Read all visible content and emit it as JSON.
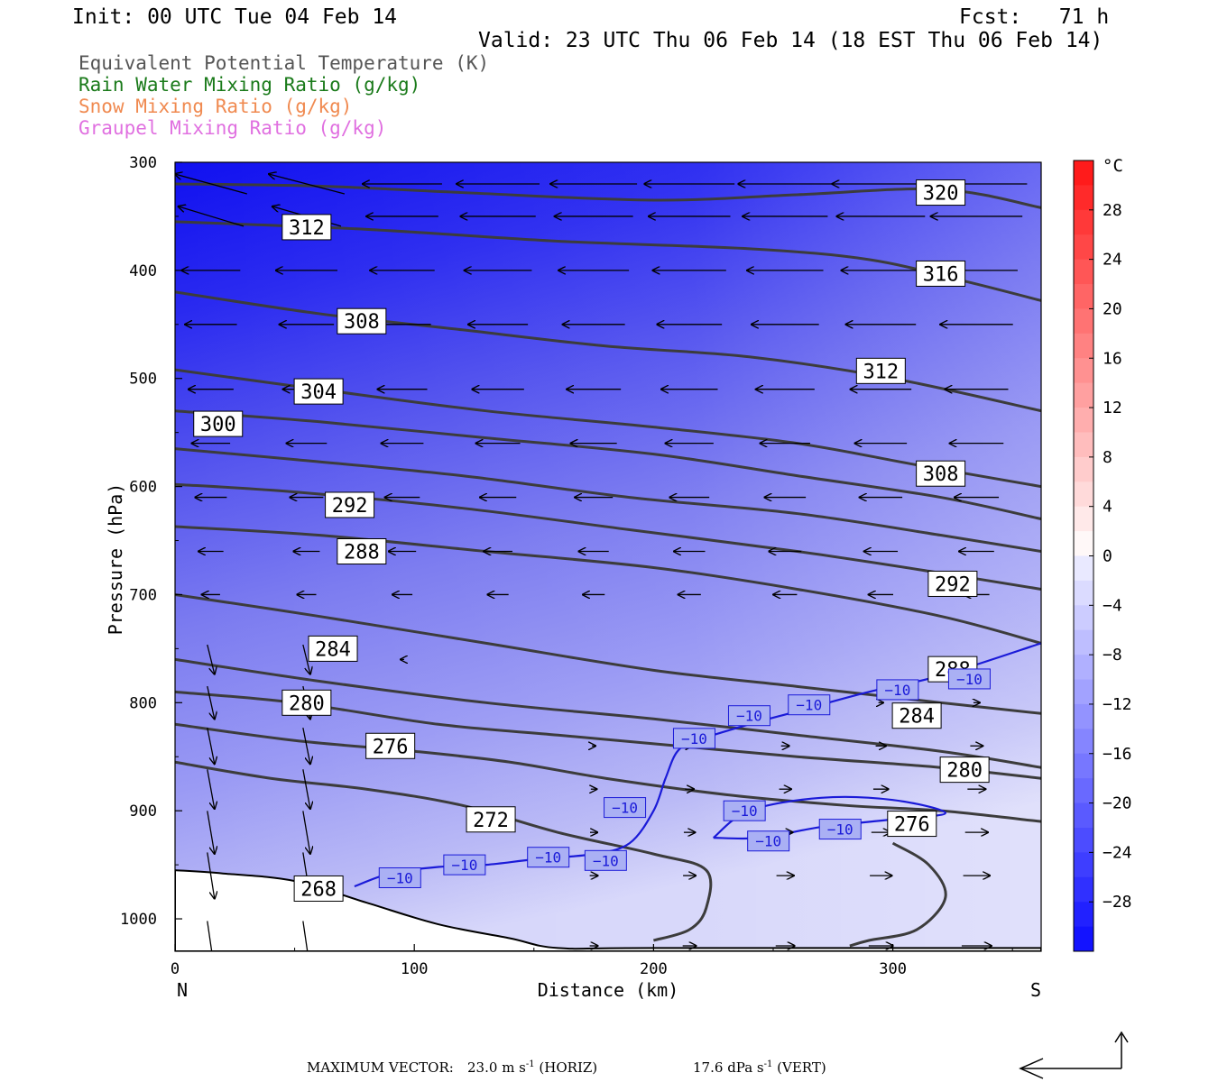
{
  "header": {
    "init": "Init: 00 UTC Tue 04 Feb 14",
    "fcst": "Fcst:   71 h",
    "valid": "Valid: 23 UTC Thu 06 Feb 14 (18 EST Thu 06 Feb 14)"
  },
  "legend": [
    {
      "label": "Equivalent Potential Temperature (K)",
      "color": "#555555"
    },
    {
      "label": "Rain Water Mixing Ratio (g/kg)",
      "color": "#1a7a1a"
    },
    {
      "label": "Snow Mixing Ratio (g/kg)",
      "color": "#f08a50"
    },
    {
      "label": "Graupel Mixing Ratio (g/kg)",
      "color": "#e070e0"
    }
  ],
  "chart_data": {
    "type": "cross-section",
    "xlabel": "Distance (km)",
    "ylabel": "Pressure (hPa)",
    "x_ticks": [
      0,
      100,
      200,
      300
    ],
    "x_tick_labels": [
      "0",
      "100",
      "200",
      "300"
    ],
    "xlim": [
      0,
      362
    ],
    "y_ticks": [
      300,
      400,
      500,
      600,
      700,
      800,
      900,
      1000
    ],
    "y_tick_labels": [
      "300",
      "400",
      "500",
      "600",
      "700",
      "800",
      "900",
      "1000"
    ],
    "ylim": [
      300,
      1030
    ],
    "endpoints": {
      "left": "N",
      "right": "S"
    },
    "colorbar": {
      "unit": "°C",
      "tick_values": [
        28,
        24,
        20,
        16,
        12,
        8,
        4,
        0,
        -4,
        -8,
        -12,
        -16,
        -20,
        -24,
        -28
      ],
      "tick_labels": [
        "28",
        "24",
        "20",
        "16",
        "12",
        "8",
        "4",
        "0",
        "−4",
        "−8",
        "−12",
        "−16",
        "−20",
        "−24",
        "−28"
      ],
      "range": [
        -32,
        32
      ]
    },
    "theta_e_contours": [
      {
        "value": 320,
        "x": [
          0,
          60,
          120,
          200,
          260,
          320,
          362
        ],
        "p": [
          320,
          322,
          328,
          335,
          330,
          325,
          342
        ]
      },
      {
        "value": 316,
        "x": [
          0,
          80,
          160,
          240,
          290,
          330,
          362
        ],
        "p": [
          355,
          362,
          373,
          380,
          390,
          410,
          428
        ]
      },
      {
        "value": 312,
        "x": [
          0,
          60,
          120,
          180,
          240,
          300,
          362
        ],
        "p": [
          420,
          440,
          455,
          470,
          480,
          500,
          530
        ]
      },
      {
        "value": 308,
        "x": [
          0,
          60,
          130,
          200,
          260,
          310,
          362
        ],
        "p": [
          492,
          510,
          530,
          545,
          560,
          580,
          600
        ]
      },
      {
        "value": 304,
        "x": [
          0,
          60,
          130,
          200,
          260,
          320,
          362
        ],
        "p": [
          530,
          540,
          555,
          570,
          590,
          610,
          630
        ]
      },
      {
        "value": 300,
        "x": [
          0,
          50,
          120,
          190,
          260,
          320,
          362
        ],
        "p": [
          565,
          575,
          590,
          610,
          625,
          645,
          660
        ]
      },
      {
        "value": 296,
        "x": [
          0,
          50,
          120,
          190,
          260,
          320,
          362
        ],
        "p": [
          598,
          605,
          620,
          640,
          660,
          680,
          695
        ]
      },
      {
        "value": 292,
        "x": [
          0,
          60,
          130,
          200,
          260,
          320,
          362
        ],
        "p": [
          637,
          645,
          660,
          675,
          695,
          720,
          745
        ]
      },
      {
        "value": 288,
        "x": [
          0,
          60,
          130,
          200,
          260,
          320,
          362
        ],
        "p": [
          700,
          720,
          745,
          770,
          785,
          800,
          810
        ]
      },
      {
        "value": 284,
        "x": [
          0,
          60,
          130,
          200,
          260,
          320,
          362
        ],
        "p": [
          760,
          780,
          800,
          815,
          830,
          845,
          860
        ]
      },
      {
        "value": 280,
        "x": [
          0,
          50,
          110,
          160,
          210,
          260,
          320,
          362
        ],
        "p": [
          790,
          800,
          820,
          830,
          840,
          850,
          860,
          870
        ]
      },
      {
        "value": 276,
        "x": [
          0,
          50,
          100,
          140,
          180,
          230,
          280,
          320,
          362
        ],
        "p": [
          820,
          835,
          845,
          855,
          870,
          885,
          895,
          900,
          910
        ]
      },
      {
        "value": 272,
        "x": [
          0,
          40,
          80,
          120,
          160,
          200,
          222,
          222,
          215,
          200
        ],
        "p": [
          855,
          870,
          880,
          895,
          920,
          940,
          955,
          990,
          1010,
          1020
        ]
      },
      {
        "value": 268,
        "x": [
          300,
          315,
          322,
          310,
          290,
          282
        ],
        "p": [
          930,
          950,
          980,
          1010,
          1020,
          1025
        ]
      }
    ],
    "theta_e_labels": [
      {
        "text": "320",
        "x": 320,
        "p": 328
      },
      {
        "text": "312",
        "x": 55,
        "p": 360
      },
      {
        "text": "316",
        "x": 320,
        "p": 403
      },
      {
        "text": "308",
        "x": 78,
        "p": 447
      },
      {
        "text": "312",
        "x": 295,
        "p": 493
      },
      {
        "text": "304",
        "x": 60,
        "p": 512
      },
      {
        "text": "300",
        "x": 18,
        "p": 542
      },
      {
        "text": "308",
        "x": 320,
        "p": 588
      },
      {
        "text": "292",
        "x": 73,
        "p": 617
      },
      {
        "text": "288",
        "x": 78,
        "p": 660
      },
      {
        "text": "292",
        "x": 325,
        "p": 690
      },
      {
        "text": "284",
        "x": 66,
        "p": 750
      },
      {
        "text": "288",
        "x": 325,
        "p": 769
      },
      {
        "text": "280",
        "x": 55,
        "p": 800
      },
      {
        "text": "284",
        "x": 310,
        "p": 812
      },
      {
        "text": "276",
        "x": 90,
        "p": 840
      },
      {
        "text": "280",
        "x": 330,
        "p": 862
      },
      {
        "text": "272",
        "x": 132,
        "p": 908
      },
      {
        "text": "276",
        "x": 308,
        "p": 912
      },
      {
        "text": "268",
        "x": 60,
        "p": 972
      }
    ],
    "isotherm_minus10": [
      {
        "x": [
          75,
          90,
          110,
          130,
          150,
          175,
          190,
          200,
          205,
          210,
          218,
          240,
          260,
          290,
          320,
          362
        ],
        "p": [
          970,
          958,
          952,
          950,
          945,
          940,
          930,
          900,
          870,
          845,
          835,
          820,
          808,
          790,
          775,
          745
        ]
      },
      {
        "x": [
          225,
          240,
          270,
          300,
          322,
          300,
          270,
          245,
          225
        ],
        "p": [
          925,
          900,
          888,
          890,
          902,
          908,
          915,
          925,
          925
        ]
      }
    ],
    "isotherm_labels": [
      {
        "text": "−10",
        "x": 94,
        "p": 962
      },
      {
        "text": "−10",
        "x": 121,
        "p": 950
      },
      {
        "text": "−10",
        "x": 156,
        "p": 943
      },
      {
        "text": "−10",
        "x": 180,
        "p": 946
      },
      {
        "text": "−10",
        "x": 188,
        "p": 897
      },
      {
        "text": "−10",
        "x": 217,
        "p": 833
      },
      {
        "text": "−10",
        "x": 240,
        "p": 812
      },
      {
        "text": "−10",
        "x": 265,
        "p": 802
      },
      {
        "text": "−10",
        "x": 302,
        "p": 788
      },
      {
        "text": "−10",
        "x": 332,
        "p": 778
      },
      {
        "text": "−10",
        "x": 238,
        "p": 900
      },
      {
        "text": "−10",
        "x": 248,
        "p": 928
      },
      {
        "text": "−10",
        "x": 278,
        "p": 917
      }
    ],
    "wind_vectors_hint": "circulation vectors: strong easterly (leftward) flow aloft, weakening downward; northerly sinking near surface on left; easterly-to-rightward low-level flow on right",
    "max_vector": {
      "label": "MAXIMUM VECTOR:",
      "horiz_value": "23.0",
      "horiz_unit": "m s",
      "horiz_tag": "(HORIZ)",
      "vert_value": "17.6",
      "vert_unit": "dPa s",
      "vert_tag": "(VERT)",
      "exponent": "-1"
    }
  }
}
